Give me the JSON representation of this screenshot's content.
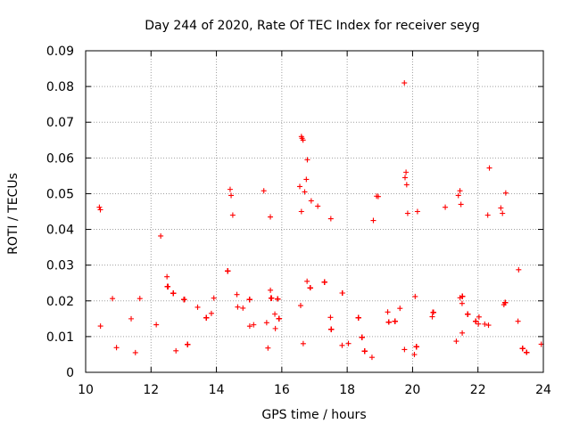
{
  "chart_data": {
    "type": "scatter",
    "title": "Day 244 of 2020, Rate Of TEC Index for receiver seyg",
    "xlabel": "GPS time / hours",
    "ylabel": "ROTI / TECUs",
    "xlim": [
      10,
      24
    ],
    "ylim": [
      0,
      0.09
    ],
    "x_ticks": [
      "10",
      "12",
      "14",
      "16",
      "18",
      "20",
      "22",
      "24"
    ],
    "y_ticks": [
      "0",
      "0.01",
      "0.02",
      "0.03",
      "0.04",
      "0.05",
      "0.06",
      "0.07",
      "0.08",
      "0.09"
    ],
    "grid": true,
    "marker": "plus",
    "color": "#ff0000",
    "dense_data": {
      "x_start": 10.35,
      "x_end": 24.0,
      "x_gap": [
        15.95,
        16.3
      ],
      "typical_range": [
        0.005,
        0.03
      ],
      "typical_median": 0.015
    },
    "notable_points": [
      {
        "x": 19.75,
        "y": 0.081
      },
      {
        "x": 16.6,
        "y": 0.066
      },
      {
        "x": 16.62,
        "y": 0.0655
      },
      {
        "x": 16.65,
        "y": 0.065
      },
      {
        "x": 16.78,
        "y": 0.0595
      },
      {
        "x": 22.35,
        "y": 0.0572
      },
      {
        "x": 19.8,
        "y": 0.056
      },
      {
        "x": 19.77,
        "y": 0.0545
      },
      {
        "x": 19.82,
        "y": 0.0525
      },
      {
        "x": 16.75,
        "y": 0.054
      },
      {
        "x": 16.55,
        "y": 0.052
      },
      {
        "x": 16.7,
        "y": 0.0505
      },
      {
        "x": 14.42,
        "y": 0.0512
      },
      {
        "x": 15.45,
        "y": 0.0508
      },
      {
        "x": 21.45,
        "y": 0.0508
      },
      {
        "x": 22.85,
        "y": 0.0502
      },
      {
        "x": 18.9,
        "y": 0.0493
      },
      {
        "x": 18.95,
        "y": 0.0492
      },
      {
        "x": 14.45,
        "y": 0.0495
      },
      {
        "x": 21.4,
        "y": 0.0495
      },
      {
        "x": 10.42,
        "y": 0.0462
      },
      {
        "x": 10.45,
        "y": 0.0455
      },
      {
        "x": 21.48,
        "y": 0.047
      },
      {
        "x": 16.9,
        "y": 0.048
      },
      {
        "x": 22.7,
        "y": 0.046
      },
      {
        "x": 16.6,
        "y": 0.045
      },
      {
        "x": 17.1,
        "y": 0.0465
      },
      {
        "x": 15.65,
        "y": 0.0435
      },
      {
        "x": 14.5,
        "y": 0.044
      },
      {
        "x": 20.15,
        "y": 0.045
      },
      {
        "x": 21.0,
        "y": 0.0462
      },
      {
        "x": 22.75,
        "y": 0.0445
      },
      {
        "x": 19.85,
        "y": 0.0445
      },
      {
        "x": 22.3,
        "y": 0.044
      },
      {
        "x": 17.5,
        "y": 0.043
      },
      {
        "x": 18.8,
        "y": 0.0425
      }
    ]
  }
}
